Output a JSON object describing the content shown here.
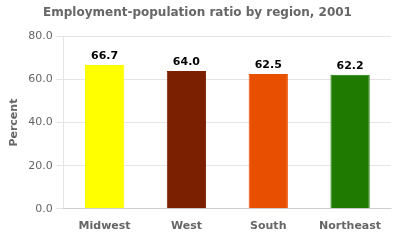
{
  "chart_data": {
    "type": "bar",
    "title": "Employment-population ratio by region, 2001",
    "categories": [
      "Midwest",
      "West",
      "South",
      "Northeast"
    ],
    "values": [
      66.7,
      64.0,
      62.5,
      62.2
    ],
    "value_labels": [
      "66.7",
      "64.0",
      "62.5",
      "62.2"
    ],
    "data_labels": true,
    "colors": [
      "#ffff00",
      "#7b2000",
      "#e85000",
      "#1e7a00"
    ],
    "ylabel": "Percent",
    "ylim": [
      0,
      80
    ],
    "yticks": [
      {
        "value": 0,
        "label": "0.0"
      },
      {
        "value": 20,
        "label": "20.0"
      },
      {
        "value": 40,
        "label": "40.0"
      },
      {
        "value": 60,
        "label": "60.0"
      },
      {
        "value": 80,
        "label": "80.0"
      }
    ],
    "grid": true
  }
}
